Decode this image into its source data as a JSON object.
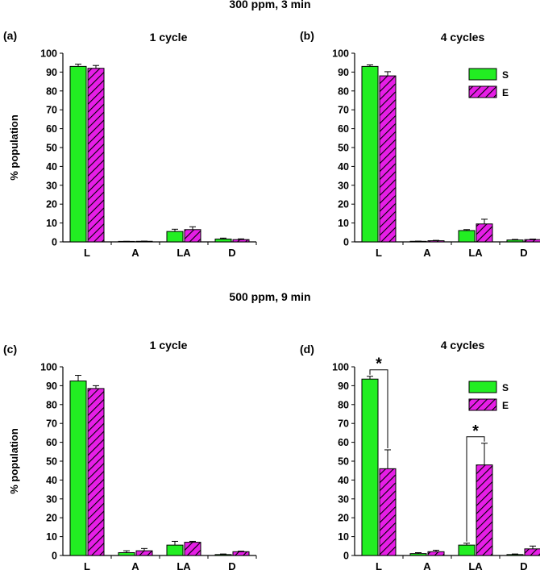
{
  "sections": [
    {
      "title": "300 ppm, 3 min"
    },
    {
      "title": "500 ppm, 9 min"
    }
  ],
  "colors": {
    "S": "#22ee22",
    "E": "#e61ee6",
    "hatch": "#000000"
  },
  "chart_data": [
    {
      "panel": "(a)",
      "title": "1 cycle",
      "type": "bar",
      "ylabel": "% population",
      "ylim": [
        0,
        100
      ],
      "yticks": [
        "0",
        "10",
        "20",
        "30",
        "40",
        "50",
        "60",
        "70",
        "80",
        "90",
        "100"
      ],
      "categories": [
        "L",
        "A",
        "LA",
        "D"
      ],
      "series": [
        {
          "name": "S",
          "values": [
            93,
            0.2,
            5.5,
            1.5
          ],
          "errors": [
            1.2,
            0.1,
            1.2,
            0.5
          ]
        },
        {
          "name": "E",
          "values": [
            92,
            0.3,
            6.5,
            1.2
          ],
          "errors": [
            1.5,
            0.1,
            1.5,
            0.4
          ]
        }
      ]
    },
    {
      "panel": "(b)",
      "title": "4 cycles",
      "type": "bar",
      "ylabel": "",
      "ylim": [
        0,
        100
      ],
      "yticks": [
        "0",
        "10",
        "20",
        "30",
        "40",
        "50",
        "60",
        "70",
        "80",
        "90",
        "100"
      ],
      "categories": [
        "L",
        "A",
        "LA",
        "D"
      ],
      "legend": [
        "S",
        "E"
      ],
      "series": [
        {
          "name": "S",
          "values": [
            93,
            0.3,
            6,
            1
          ],
          "errors": [
            0.8,
            0.1,
            0.5,
            0.3
          ]
        },
        {
          "name": "E",
          "values": [
            88,
            0.6,
            9.5,
            1.2
          ],
          "errors": [
            2.2,
            0.2,
            2.5,
            0.3
          ]
        }
      ]
    },
    {
      "panel": "(c)",
      "title": "1 cycle",
      "type": "bar",
      "ylabel": "% population",
      "ylim": [
        0,
        100
      ],
      "yticks": [
        "0",
        "10",
        "20",
        "30",
        "40",
        "50",
        "60",
        "70",
        "80",
        "90",
        "100"
      ],
      "categories": [
        "L",
        "A",
        "LA",
        "D"
      ],
      "series": [
        {
          "name": "S",
          "values": [
            92.5,
            1.5,
            5.5,
            0.5
          ],
          "errors": [
            3,
            1,
            2,
            0.3
          ]
        },
        {
          "name": "E",
          "values": [
            88.5,
            2.5,
            7,
            2
          ],
          "errors": [
            1.5,
            1.2,
            0.5,
            0.3
          ]
        }
      ]
    },
    {
      "panel": "(d)",
      "title": "4 cycles",
      "type": "bar",
      "ylabel": "",
      "ylim": [
        0,
        100
      ],
      "yticks": [
        "0",
        "10",
        "20",
        "30",
        "40",
        "50",
        "60",
        "70",
        "80",
        "90",
        "100"
      ],
      "categories": [
        "L",
        "A",
        "LA",
        "D"
      ],
      "legend": [
        "S",
        "E"
      ],
      "series": [
        {
          "name": "S",
          "values": [
            93.5,
            1,
            5.5,
            0.5
          ],
          "errors": [
            1.5,
            0.5,
            1,
            0.3
          ]
        },
        {
          "name": "E",
          "values": [
            46,
            2,
            48,
            3.5
          ],
          "errors": [
            10,
            0.8,
            11.5,
            1.5
          ]
        }
      ],
      "annotations": [
        {
          "category": "L",
          "text": "*"
        },
        {
          "category": "LA",
          "text": "*"
        }
      ]
    }
  ]
}
